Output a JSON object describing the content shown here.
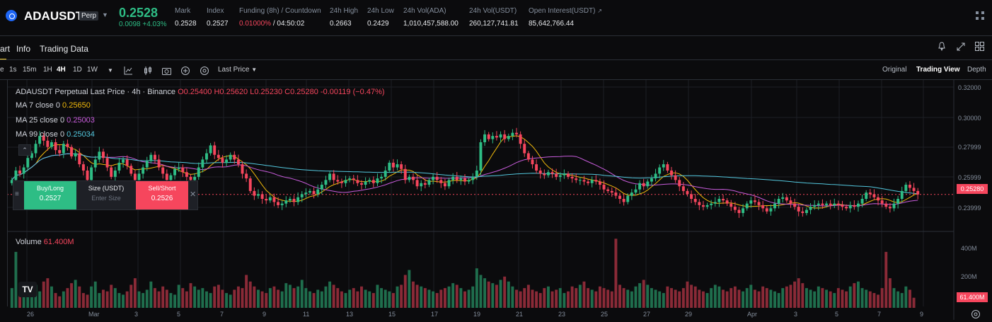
{
  "ticker": {
    "symbol": "ADAUSDT",
    "badge": "Perp",
    "last_price": "0.2528",
    "change": "0.0098 +4.03%",
    "stats": [
      {
        "label": "Mark",
        "value": "0.2528"
      },
      {
        "label": "Index",
        "value": "0.2527"
      },
      {
        "label": "Funding (8h) / Countdown",
        "value": "/ 04:50:02",
        "highlight": "0.01000%"
      },
      {
        "label": "24h High",
        "value": "0.2663"
      },
      {
        "label": "24h Low",
        "value": "0.2429"
      },
      {
        "label": "24h Vol(ADA)",
        "value": "1,010,457,588.00"
      },
      {
        "label": "24h Vol(USDT)",
        "value": "260,127,741.81"
      },
      {
        "label": "Open Interest(USDT)",
        "value": "85,642,766.44"
      }
    ]
  },
  "tabs": [
    "art",
    "Info",
    "Trading Data"
  ],
  "toolbar": {
    "intervals": [
      "e",
      "1s",
      "15m",
      "1H",
      "4H",
      "1D",
      "1W"
    ],
    "active_interval": "4H",
    "price_type": "Last Price",
    "views": [
      "Original",
      "Trading View",
      "Depth"
    ],
    "active_view": "Trading View"
  },
  "legend": {
    "title": "ADAUSDT Perpetual Last Price · 4h · Binance",
    "ohlc": "O0.25400 H0.25620 L0.25230 C0.25280 -0.00119 (−0.47%)",
    "ma7_label": "MA 7 close 0",
    "ma7_value": "0.25650",
    "ma25_label": "MA 25 close 0",
    "ma25_value": "0.25003",
    "ma99_label": "MA 99 close 0",
    "ma99_value": "0.25034",
    "volume_label": "Volume",
    "volume_value": "61.400M"
  },
  "order": {
    "buy_label": "Buy/Long",
    "buy_price": "0.2527",
    "size_label": "Size (USDT)",
    "size_placeholder": "Enter Size",
    "sell_label": "Sell/Short",
    "sell_price": "0.2526"
  },
  "y_axis": [
    "0.32000",
    "0.30000",
    "0.27999",
    "0.25999",
    "0.23999"
  ],
  "current_price_tag": "0.25280",
  "vol_axis": [
    "400M",
    "200M"
  ],
  "vol_tag": "61.400M",
  "x_axis": [
    "26",
    "Mar",
    "3",
    "5",
    "7",
    "9",
    "11",
    "13",
    "15",
    "17",
    "19",
    "21",
    "23",
    "25",
    "27",
    "29",
    "Apr",
    "3",
    "5",
    "7",
    "9"
  ],
  "colors": {
    "up": "#2ebd85",
    "down": "#f6465d",
    "ma7": "#f0b90b",
    "ma25": "#c85cdb",
    "ma99": "#53c7dd",
    "accent": "#fcd535"
  },
  "chart_data": {
    "type": "candlestick",
    "ylim": [
      0.232,
      0.322
    ],
    "closes": [
      0.262,
      0.268,
      0.266,
      0.27,
      0.276,
      0.279,
      0.285,
      0.29,
      0.287,
      0.283,
      0.286,
      0.281,
      0.279,
      0.285,
      0.283,
      0.277,
      0.279,
      0.272,
      0.268,
      0.262,
      0.27,
      0.275,
      0.28,
      0.276,
      0.27,
      0.264,
      0.268,
      0.273,
      0.275,
      0.271,
      0.266,
      0.262,
      0.266,
      0.27,
      0.274,
      0.278,
      0.275,
      0.27,
      0.266,
      0.262,
      0.265,
      0.269,
      0.27,
      0.267,
      0.264,
      0.262,
      0.264,
      0.27,
      0.275,
      0.279,
      0.284,
      0.278,
      0.276,
      0.273,
      0.275,
      0.278,
      0.275,
      0.272,
      0.266,
      0.263,
      0.255,
      0.252,
      0.253,
      0.25,
      0.249,
      0.251,
      0.248,
      0.246,
      0.247,
      0.249,
      0.25,
      0.248,
      0.251,
      0.253,
      0.254,
      0.255,
      0.253,
      0.256,
      0.259,
      0.262,
      0.266,
      0.262,
      0.261,
      0.26,
      0.262,
      0.263,
      0.262,
      0.26,
      0.259,
      0.261,
      0.262,
      0.26,
      0.263,
      0.264,
      0.268,
      0.273,
      0.27,
      0.272,
      0.269,
      0.262,
      0.264,
      0.262,
      0.258,
      0.26,
      0.259,
      0.262,
      0.264,
      0.262,
      0.26,
      0.258,
      0.262,
      0.264,
      0.262,
      0.263,
      0.261,
      0.262,
      0.264,
      0.268,
      0.286,
      0.291,
      0.288,
      0.29,
      0.289,
      0.291,
      0.288,
      0.29,
      0.292,
      0.291,
      0.285,
      0.279,
      0.275,
      0.272,
      0.268,
      0.266,
      0.265,
      0.267,
      0.266,
      0.264,
      0.265,
      0.266,
      0.264,
      0.263,
      0.262,
      0.262,
      0.261,
      0.26,
      0.262,
      0.261,
      0.259,
      0.256,
      0.255,
      0.254,
      0.252,
      0.25,
      0.248,
      0.252,
      0.254,
      0.256,
      0.26,
      0.258,
      0.261,
      0.263,
      0.266,
      0.27,
      0.272,
      0.268,
      0.265,
      0.262,
      0.258,
      0.255,
      0.253,
      0.25,
      0.248,
      0.246,
      0.245,
      0.246,
      0.247,
      0.248,
      0.25,
      0.249,
      0.247,
      0.245,
      0.243,
      0.241,
      0.244,
      0.247,
      0.249,
      0.248,
      0.246,
      0.244,
      0.242,
      0.244,
      0.247,
      0.25,
      0.251,
      0.249,
      0.247,
      0.245,
      0.242,
      0.241,
      0.243,
      0.245,
      0.246,
      0.247,
      0.246,
      0.247,
      0.246,
      0.247,
      0.246,
      0.245,
      0.244,
      0.246,
      0.245,
      0.247,
      0.25,
      0.254,
      0.253,
      0.251,
      0.249,
      0.247,
      0.245,
      0.244,
      0.247,
      0.25,
      0.255,
      0.259,
      0.257,
      0.255,
      0.2528
    ],
    "volumes": [
      120,
      340,
      100,
      80,
      90,
      110,
      140,
      100,
      160,
      180,
      130,
      90,
      70,
      100,
      120,
      150,
      170,
      130,
      90,
      80,
      130,
      160,
      90,
      110,
      100,
      140,
      120,
      90,
      80,
      100,
      140,
      180,
      100,
      90,
      110,
      160,
      120,
      100,
      130,
      110,
      90,
      80,
      140,
      120,
      100,
      150,
      130,
      110,
      120,
      100,
      90,
      130,
      140,
      110,
      90,
      80,
      110,
      130,
      120,
      200,
      160,
      130,
      110,
      100,
      90,
      120,
      130,
      110,
      100,
      150,
      140,
      120,
      130,
      170,
      120,
      100,
      90,
      110,
      100,
      130,
      160,
      140,
      120,
      100,
      90,
      110,
      120,
      100,
      130,
      110,
      100,
      90,
      140,
      120,
      110,
      100,
      90,
      130,
      140,
      200,
      230,
      160,
      140,
      130,
      120,
      110,
      100,
      90,
      110,
      120,
      130,
      150,
      140,
      120,
      100,
      110,
      130,
      240,
      200,
      180,
      160,
      150,
      140,
      170,
      190,
      160,
      130,
      110,
      100,
      120,
      140,
      110,
      100,
      90,
      120,
      130,
      100,
      110,
      120,
      90,
      100,
      130,
      120,
      140,
      160,
      120,
      110,
      100,
      130,
      120,
      110,
      100,
      420,
      140,
      120,
      110,
      100,
      130,
      150,
      170,
      140,
      120,
      110,
      100,
      90,
      130,
      120,
      110,
      100,
      120,
      160,
      140,
      130,
      110,
      100,
      90,
      120,
      140,
      130,
      110,
      100,
      120,
      130,
      110,
      100,
      120,
      140,
      110,
      100,
      130,
      120,
      110,
      100,
      90,
      120,
      130,
      140,
      160,
      180,
      150,
      120,
      110,
      100,
      130,
      120,
      110,
      100,
      90,
      120,
      110,
      100,
      130,
      150,
      160,
      120,
      110,
      100,
      90,
      80,
      120,
      340,
      180,
      120,
      100,
      90,
      130,
      110,
      61.4
    ]
  }
}
